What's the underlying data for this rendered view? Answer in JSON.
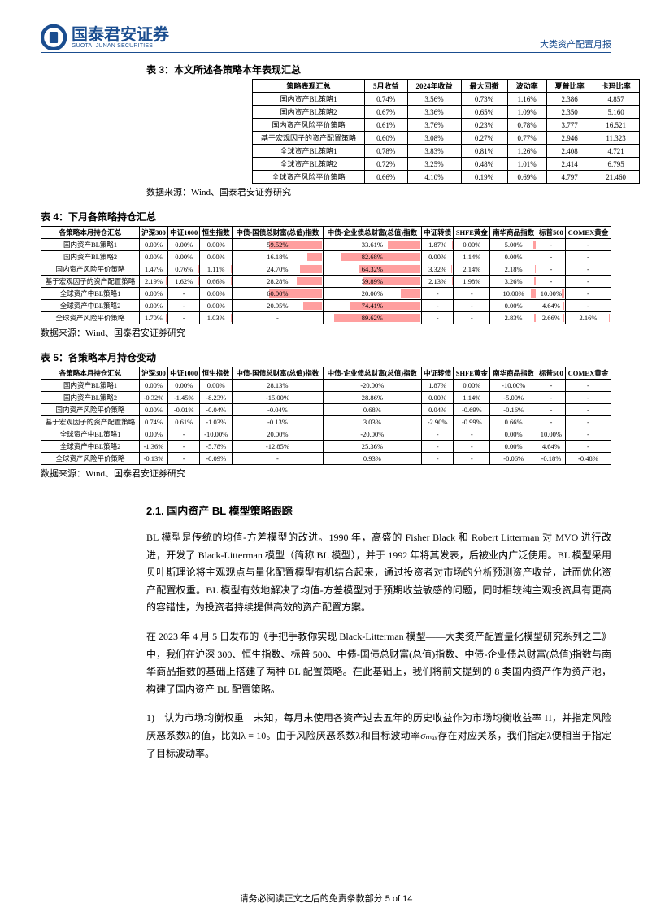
{
  "header": {
    "logo_cn": "国泰君安证券",
    "logo_en": "GUOTAI JUNAN SECURITIES",
    "right": "大类资产配置月报"
  },
  "table3": {
    "title": "表 3：本文所述各策略本年表现汇总",
    "headers": [
      "策略表现汇总",
      "5月收益",
      "2024年收益",
      "最大回撤",
      "波动率",
      "夏普比率",
      "卡玛比率"
    ],
    "rows": [
      [
        "国内资产BL策略1",
        "0.74%",
        "3.56%",
        "0.73%",
        "1.16%",
        "2.386",
        "4.857"
      ],
      [
        "国内资产BL策略2",
        "0.67%",
        "3.36%",
        "0.65%",
        "1.09%",
        "2.350",
        "5.160"
      ],
      [
        "国内资产风险平价策略",
        "0.61%",
        "3.76%",
        "0.23%",
        "0.78%",
        "3.777",
        "16.521"
      ],
      [
        "基于宏观因子的资产配置策略",
        "0.60%",
        "3.08%",
        "0.27%",
        "0.77%",
        "2.946",
        "11.323"
      ],
      [
        "全球资产BL策略1",
        "0.78%",
        "3.83%",
        "0.81%",
        "1.26%",
        "2.408",
        "4.721"
      ],
      [
        "全球资产BL策略2",
        "0.72%",
        "3.25%",
        "0.48%",
        "1.01%",
        "2.414",
        "6.795"
      ],
      [
        "全球资产风险平价策略",
        "0.66%",
        "4.10%",
        "0.19%",
        "0.69%",
        "4.797",
        "21.460"
      ]
    ],
    "source": "数据来源：Wind、国泰君安证券研究"
  },
  "table4": {
    "title": "表 4：下月各策略持仓汇总",
    "headers": [
      "各策略本月持仓汇总",
      "沪深300",
      "中证1000",
      "恒生指数",
      "中债-国债总财富(总值)指数",
      "中债-企业债总财富(总值)指数",
      "中证转债",
      "SHFE黄金",
      "南华商品指数",
      "标普500",
      "COMEX黄金"
    ],
    "rows": [
      {
        "cells": [
          "国内资产BL策略1",
          "0.00%",
          "0.00%",
          "0.00%",
          "59.52%",
          "33.61%",
          "1.87%",
          "0.00%",
          "5.00%",
          "-",
          "-"
        ],
        "shade": [
          0,
          0,
          0,
          60,
          34,
          2,
          0,
          5,
          0,
          0
        ]
      },
      {
        "cells": [
          "国内资产BL策略2",
          "0.00%",
          "0.00%",
          "0.00%",
          "16.18%",
          "82.68%",
          "0.00%",
          "1.14%",
          "0.00%",
          "-",
          "-"
        ],
        "shade": [
          0,
          0,
          0,
          16,
          83,
          0,
          1,
          0,
          0,
          0
        ]
      },
      {
        "cells": [
          "国内资产风险平价策略",
          "1.47%",
          "0.76%",
          "1.11%",
          "24.70%",
          "64.32%",
          "3.32%",
          "2.14%",
          "2.18%",
          "-",
          "-"
        ],
        "shade": [
          1,
          1,
          1,
          25,
          64,
          3,
          2,
          2,
          0,
          0
        ]
      },
      {
        "cells": [
          "基于宏观因子的资产配置策略",
          "2.19%",
          "1.62%",
          "0.66%",
          "28.28%",
          "59.89%",
          "2.13%",
          "1.98%",
          "3.26%",
          "-",
          "-"
        ],
        "shade": [
          2,
          2,
          1,
          28,
          60,
          2,
          2,
          3,
          0,
          0
        ]
      },
      {
        "cells": [
          "全球资产中BL策略1",
          "0.00%",
          "-",
          "0.00%",
          "60.00%",
          "20.00%",
          "-",
          "-",
          "10.00%",
          "10.00%",
          "-"
        ],
        "shade": [
          0,
          0,
          0,
          60,
          20,
          0,
          0,
          10,
          10,
          0
        ]
      },
      {
        "cells": [
          "全球资产中BL策略2",
          "0.00%",
          "-",
          "0.00%",
          "20.95%",
          "74.41%",
          "-",
          "-",
          "0.00%",
          "4.64%",
          "-"
        ],
        "shade": [
          0,
          0,
          0,
          21,
          74,
          0,
          0,
          0,
          5,
          0
        ]
      },
      {
        "cells": [
          "全球资产风险平价策略",
          "1.70%",
          "-",
          "1.03%",
          "-",
          "89.62%",
          "-",
          "-",
          "2.83%",
          "2.66%",
          "2.16%"
        ],
        "shade": [
          2,
          0,
          1,
          0,
          90,
          0,
          0,
          3,
          3,
          2
        ]
      }
    ],
    "source": "数据来源：Wind、国泰君安证券研究"
  },
  "table5": {
    "title": "表 5：各策略本月持仓变动",
    "headers": [
      "各策略本月持仓汇总",
      "沪深300",
      "中证1000",
      "恒生指数",
      "中债-国债总财富(总值)指数",
      "中债-企业债总财富(总值)指数",
      "中证转债",
      "SHFE黄金",
      "南华商品指数",
      "标普500",
      "COMEX黄金"
    ],
    "rows": [
      [
        "国内资产BL策略1",
        "0.00%",
        "0.00%",
        "0.00%",
        "28.13%",
        "-20.00%",
        "1.87%",
        "0.00%",
        "-10.00%",
        "-",
        "-"
      ],
      [
        "国内资产BL策略2",
        "-0.32%",
        "-1.45%",
        "-8.23%",
        "-15.00%",
        "28.86%",
        "0.00%",
        "1.14%",
        "-5.00%",
        "-",
        "-"
      ],
      [
        "国内资产风险平价策略",
        "0.00%",
        "-0.01%",
        "-0.04%",
        "-0.04%",
        "0.68%",
        "0.04%",
        "-0.69%",
        "-0.16%",
        "-",
        "-"
      ],
      [
        "基于宏观因子的资产配置策略",
        "0.74%",
        "0.61%",
        "-1.03%",
        "-0.13%",
        "3.03%",
        "-2.90%",
        "-0.99%",
        "0.66%",
        "-",
        "-"
      ],
      [
        "全球资产中BL策略1",
        "0.00%",
        "-",
        "-10.00%",
        "20.00%",
        "-20.00%",
        "-",
        "-",
        "0.00%",
        "10.00%",
        "-"
      ],
      [
        "全球资产中BL策略2",
        "-1.36%",
        "-",
        "-5.78%",
        "-12.85%",
        "25.36%",
        "-",
        "-",
        "0.00%",
        "4.64%",
        "-"
      ],
      [
        "全球资产风险平价策略",
        "-0.13%",
        "-",
        "-0.09%",
        "-",
        "0.93%",
        "-",
        "-",
        "-0.06%",
        "-0.18%",
        "-0.48%"
      ]
    ],
    "source": "数据来源：Wind、国泰君安证券研究"
  },
  "section": {
    "title": "2.1. 国内资产 BL 模型策略跟踪",
    "p1": "BL 模型是传统的均值-方差模型的改进。1990 年，高盛的 Fisher Black 和 Robert Litterman 对 MVO 进行改进，开发了 Black-Litterman 模型（简称 BL 模型），并于 1992 年将其发表，后被业内广泛使用。BL 模型采用贝叶斯理论将主观观点与量化配置模型有机结合起来，通过投资者对市场的分析预测资产收益，进而优化资产配置权重。BL 模型有效地解决了均值-方差模型对于预期收益敏感的问题，同时相较纯主观投资具有更高的容错性，为投资者持续提供高效的资产配置方案。",
    "p2": "在 2023 年 4 月 5 日发布的《手把手教你实现 Black-Litterman 模型——大类资产配置量化模型研究系列之二》中，我们在沪深 300、恒生指数、标普 500、中债-国债总财富(总值)指数、中债-企业债总财富(总值)指数与南华商品指数的基础上搭建了两种 BL 配置策略。在此基础上，我们将前文提到的 8 类国内资产作为资产池，构建了国内资产 BL 配置策略。",
    "p3_num": "1)",
    "p3": "认为市场均衡权重　未知，每月末使用各资产过去五年的历史收益作为市场均衡收益率 Π，并指定风险厌恶系数λ的值，比如λ = 10。由于风险厌恶系数λ和目标波动率σₘₐₓ存在对应关系，我们指定λ便相当于指定了目标波动率。"
  },
  "footer": "请务必阅读正文之后的免责条款部分 5 of 14",
  "colors": {
    "brand": "#1a4d8f",
    "shade": "#ff5050"
  }
}
